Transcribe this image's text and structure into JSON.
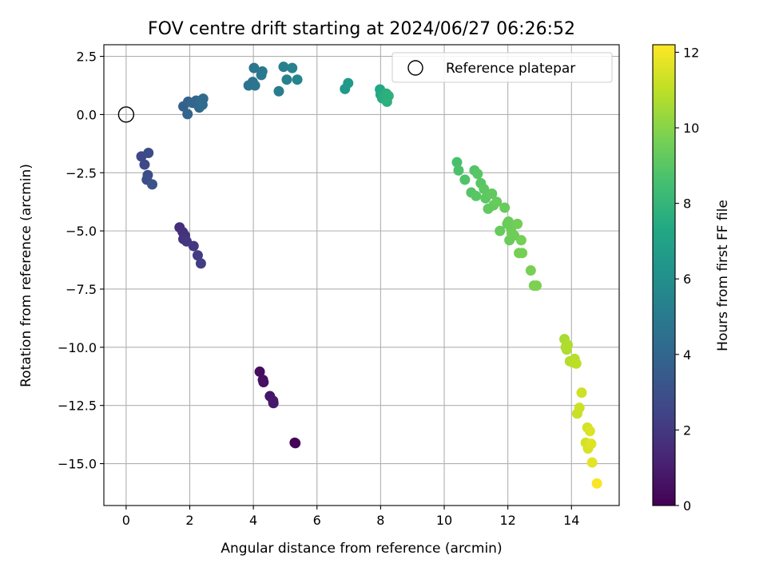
{
  "chart_data": {
    "type": "scatter",
    "title": "FOV centre drift starting at 2024/06/27 06:26:52",
    "xlabel": "Angular distance from reference (arcmin)",
    "ylabel": "Rotation from reference (arcmin)",
    "xlim": [
      -0.7,
      15.5
    ],
    "ylim": [
      -16.8,
      3.0
    ],
    "x_ticks": [
      0,
      2,
      4,
      6,
      8,
      10,
      12,
      14
    ],
    "y_ticks": [
      2.5,
      0.0,
      -2.5,
      -5.0,
      -7.5,
      -10.0,
      -12.5,
      -15.0
    ],
    "x_tick_labels": [
      "0",
      "2",
      "4",
      "6",
      "8",
      "10",
      "12",
      "14"
    ],
    "y_tick_labels": [
      "2.5",
      "0.0",
      "−2.5",
      "−5.0",
      "−7.5",
      "−10.0",
      "−12.5",
      "−15.0"
    ],
    "grid": true,
    "legend": {
      "position": "top-right",
      "entries": [
        "Reference platepar"
      ]
    },
    "reference_point": {
      "x": 0.0,
      "y": 0.0
    },
    "colorbar": {
      "label": "Hours from first FF file",
      "colormap": "viridis",
      "range": [
        0,
        12.2
      ],
      "ticks": [
        0,
        2,
        4,
        6,
        8,
        10,
        12
      ],
      "tick_labels": [
        "0",
        "2",
        "4",
        "6",
        "8",
        "10",
        "12"
      ]
    },
    "series": [
      {
        "points": [
          [
            5.3,
            -14.1,
            0.1
          ],
          [
            5.32,
            -14.12,
            0.15
          ],
          [
            4.2,
            -11.05,
            0.4
          ],
          [
            4.3,
            -11.4,
            0.5
          ],
          [
            4.32,
            -11.5,
            0.55
          ],
          [
            4.52,
            -12.1,
            0.7
          ],
          [
            4.62,
            -12.3,
            0.8
          ],
          [
            4.63,
            -12.4,
            0.85
          ],
          [
            1.68,
            -4.85,
            1.6
          ],
          [
            1.78,
            -5.05,
            1.7
          ],
          [
            1.85,
            -5.2,
            1.75
          ],
          [
            1.8,
            -5.35,
            1.8
          ],
          [
            1.9,
            -5.45,
            1.9
          ],
          [
            2.12,
            -5.65,
            2.0
          ],
          [
            2.25,
            -6.05,
            2.15
          ],
          [
            2.35,
            -6.4,
            2.2
          ],
          [
            0.48,
            -1.8,
            2.6
          ],
          [
            0.58,
            -2.15,
            2.7
          ],
          [
            0.7,
            -1.65,
            2.8
          ],
          [
            0.68,
            -2.6,
            2.9
          ],
          [
            0.65,
            -2.8,
            3.0
          ],
          [
            0.82,
            -3.0,
            3.1
          ],
          [
            1.8,
            0.35,
            3.7
          ],
          [
            1.95,
            0.55,
            3.8
          ],
          [
            1.93,
            0.02,
            3.9
          ],
          [
            2.1,
            0.5,
            4.0
          ],
          [
            2.2,
            0.6,
            4.0
          ],
          [
            2.3,
            0.3,
            4.1
          ],
          [
            2.35,
            0.6,
            4.2
          ],
          [
            2.42,
            0.68,
            4.25
          ],
          [
            2.4,
            0.42,
            4.3
          ],
          [
            3.85,
            1.25,
            4.6
          ],
          [
            3.98,
            1.4,
            4.7
          ],
          [
            4.05,
            1.25,
            4.75
          ],
          [
            4.02,
            2.0,
            4.8
          ],
          [
            4.25,
            1.7,
            4.9
          ],
          [
            4.28,
            1.85,
            4.95
          ],
          [
            4.8,
            1.0,
            5.1
          ],
          [
            4.95,
            2.05,
            5.2
          ],
          [
            5.05,
            1.5,
            5.3
          ],
          [
            5.22,
            2.0,
            5.4
          ],
          [
            5.38,
            1.5,
            5.5
          ],
          [
            6.88,
            1.1,
            6.5
          ],
          [
            6.98,
            1.35,
            6.6
          ],
          [
            7.98,
            1.08,
            7.3
          ],
          [
            8.0,
            0.85,
            7.4
          ],
          [
            8.05,
            0.7,
            7.5
          ],
          [
            8.12,
            0.75,
            7.6
          ],
          [
            8.18,
            0.9,
            7.65
          ],
          [
            8.2,
            0.55,
            7.7
          ],
          [
            8.25,
            0.8,
            7.75
          ],
          [
            10.4,
            -2.05,
            8.6
          ],
          [
            10.45,
            -2.4,
            8.7
          ],
          [
            10.65,
            -2.8,
            8.8
          ],
          [
            10.85,
            -3.35,
            8.9
          ],
          [
            10.95,
            -2.4,
            8.9
          ],
          [
            11.0,
            -3.5,
            9.0
          ],
          [
            11.05,
            -2.55,
            9.0
          ],
          [
            11.15,
            -2.95,
            9.0
          ],
          [
            11.25,
            -3.2,
            9.1
          ],
          [
            11.3,
            -3.6,
            9.1
          ],
          [
            11.38,
            -4.05,
            9.2
          ],
          [
            11.5,
            -3.4,
            9.2
          ],
          [
            11.55,
            -3.9,
            9.25
          ],
          [
            11.65,
            -3.75,
            9.3
          ],
          [
            11.75,
            -5.0,
            9.3
          ],
          [
            11.9,
            -4.0,
            9.35
          ],
          [
            11.98,
            -4.7,
            9.4
          ],
          [
            12.02,
            -4.6,
            9.4
          ],
          [
            12.05,
            -5.4,
            9.4
          ],
          [
            12.1,
            -4.9,
            9.45
          ],
          [
            12.12,
            -5.1,
            9.5
          ],
          [
            12.2,
            -5.2,
            9.5
          ],
          [
            12.3,
            -4.7,
            9.55
          ],
          [
            12.35,
            -5.95,
            9.6
          ],
          [
            12.42,
            -5.4,
            9.6
          ],
          [
            12.45,
            -5.95,
            9.65
          ],
          [
            12.72,
            -6.7,
            9.7
          ],
          [
            12.82,
            -7.35,
            9.75
          ],
          [
            12.9,
            -7.35,
            9.8
          ],
          [
            13.78,
            -9.65,
            10.6
          ],
          [
            13.82,
            -10.0,
            10.65
          ],
          [
            13.85,
            -10.1,
            10.7
          ],
          [
            13.88,
            -9.9,
            10.75
          ],
          [
            13.95,
            -10.6,
            10.8
          ],
          [
            14.05,
            -10.65,
            10.85
          ],
          [
            14.1,
            -10.5,
            10.9
          ],
          [
            14.15,
            -10.7,
            10.95
          ],
          [
            14.18,
            -12.85,
            11.2
          ],
          [
            14.25,
            -12.6,
            11.25
          ],
          [
            14.32,
            -11.95,
            11.3
          ],
          [
            14.45,
            -14.1,
            11.4
          ],
          [
            14.5,
            -13.45,
            11.45
          ],
          [
            14.52,
            -14.35,
            11.5
          ],
          [
            14.58,
            -13.6,
            11.55
          ],
          [
            14.62,
            -14.15,
            11.6
          ],
          [
            14.65,
            -14.95,
            11.7
          ],
          [
            14.8,
            -15.85,
            12.1
          ]
        ]
      }
    ]
  }
}
